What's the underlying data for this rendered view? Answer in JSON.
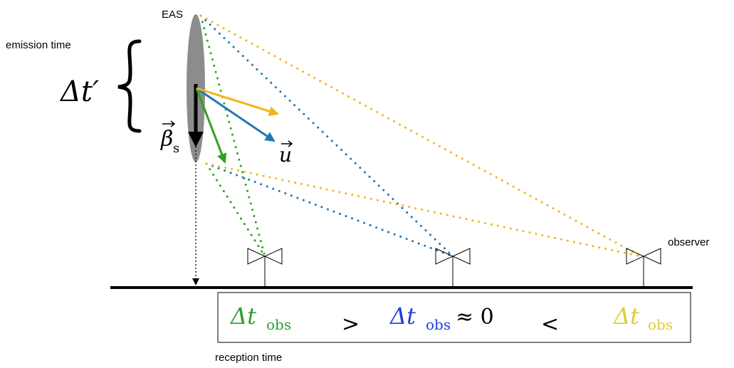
{
  "labels": {
    "eas": "EAS",
    "emission_time": "emission time",
    "delta_t_prime": "Δt′",
    "beta_s_symbol": "β",
    "beta_s_sub": "s",
    "u_vector": "u",
    "observer": "observer",
    "reception_time": "reception time"
  },
  "comparison": {
    "left": {
      "base": "Δt",
      "sub": "obs",
      "color": "#2ca02c"
    },
    "op1": ">",
    "middle": {
      "base": "Δt",
      "sub": "obs",
      "suffix": "≈ 0",
      "color": "#1f3fd6"
    },
    "op2": "<",
    "right": {
      "base": "Δt",
      "sub": "obs",
      "color": "#d9cf3a"
    }
  },
  "colors": {
    "green": "#2ea31e",
    "blue": "#1f78b4",
    "orange": "#f2b418",
    "shower": "#8c8c8c"
  }
}
